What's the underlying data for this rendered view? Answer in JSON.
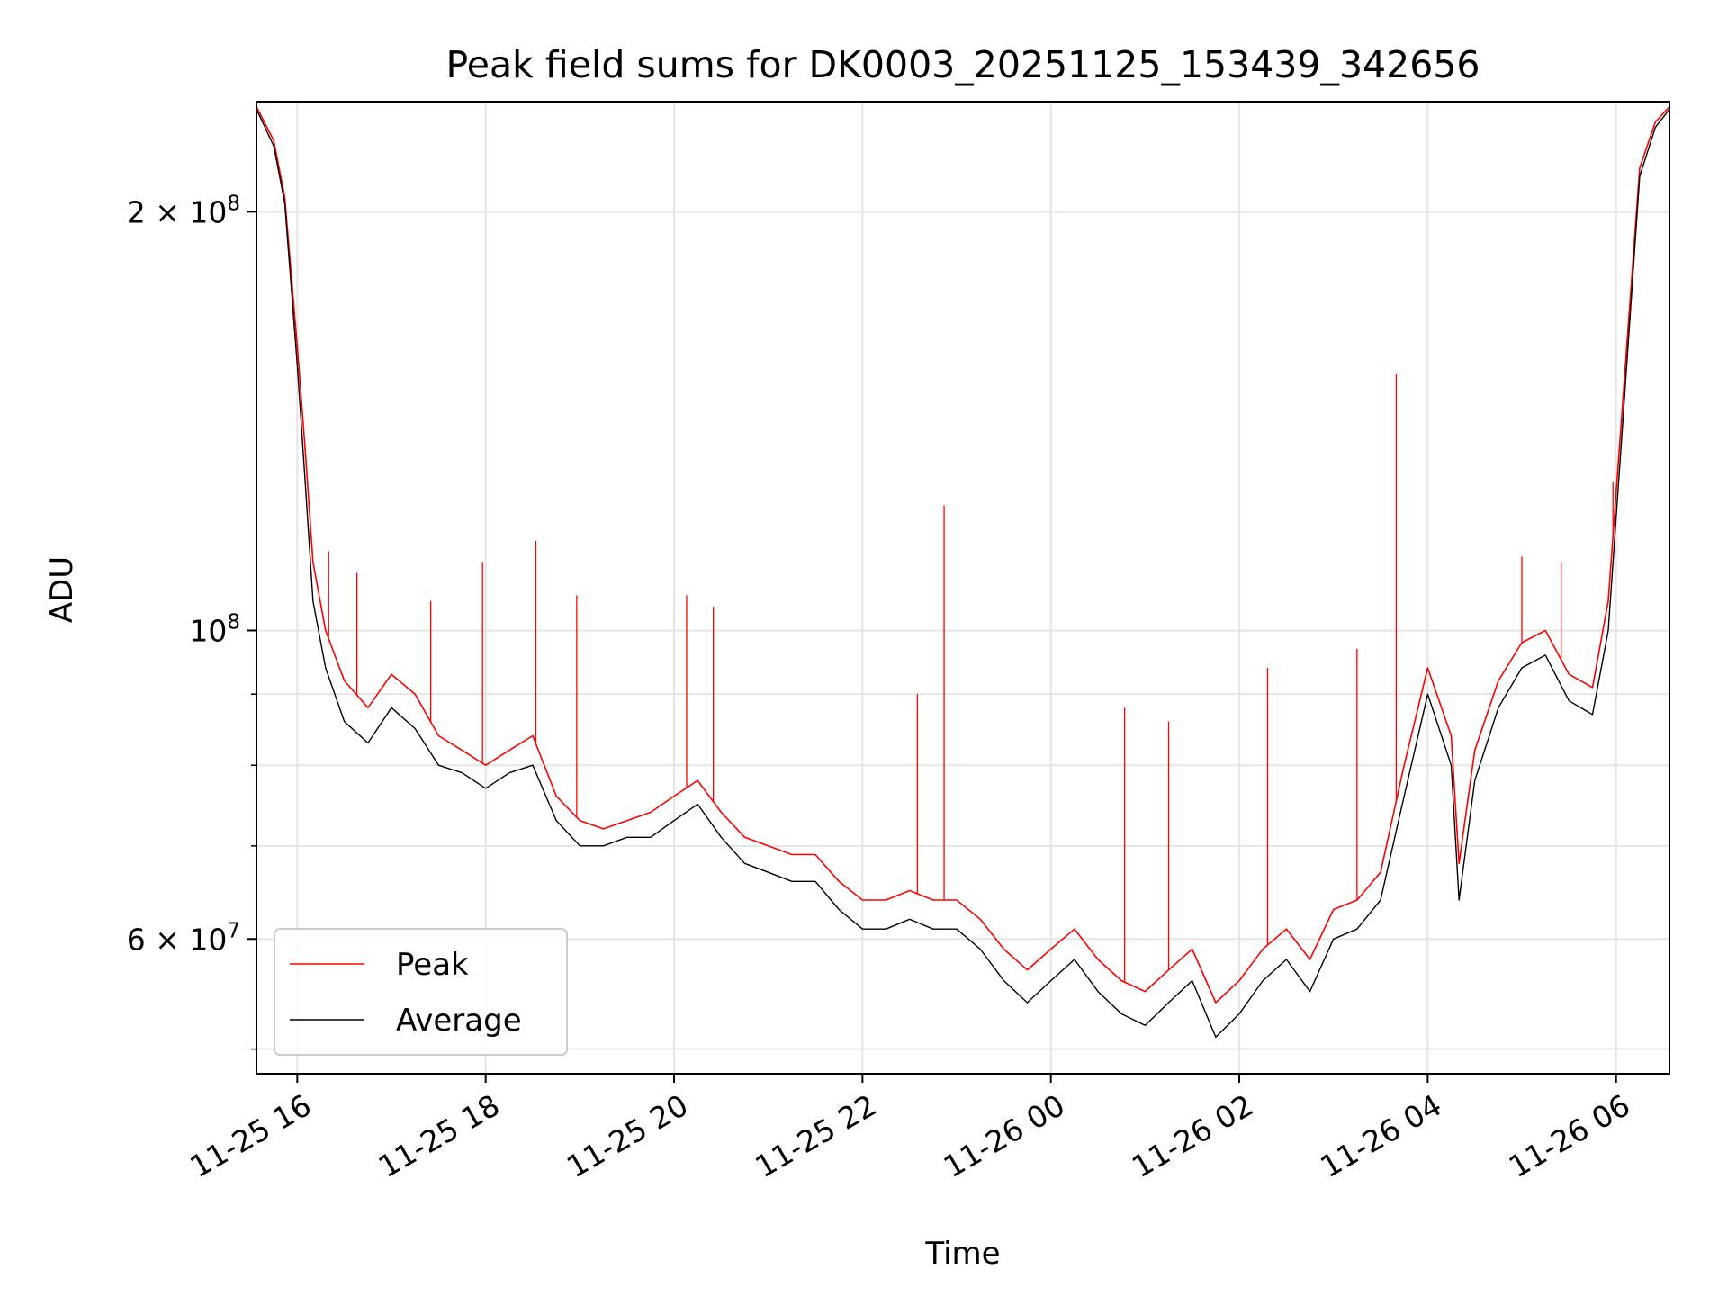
{
  "chart_data": {
    "type": "line",
    "title": "Peak field sums for DK0003_20251125_153439_342656",
    "xlabel": "Time",
    "ylabel": "ADU",
    "yscale": "log",
    "xlim": [
      "2025-11-25 15:34",
      "2025-11-26 06:34"
    ],
    "ylim": [
      48000000,
      240000000
    ],
    "grid": true,
    "legend_position": "lower-left",
    "x_ticks": [
      {
        "value": "2025-11-25 16:00",
        "label": "11-25 16"
      },
      {
        "value": "2025-11-25 18:00",
        "label": "11-25 18"
      },
      {
        "value": "2025-11-25 20:00",
        "label": "11-25 20"
      },
      {
        "value": "2025-11-25 22:00",
        "label": "11-25 22"
      },
      {
        "value": "2025-11-26 00:00",
        "label": "11-26 00"
      },
      {
        "value": "2025-11-26 02:00",
        "label": "11-26 02"
      },
      {
        "value": "2025-11-26 04:00",
        "label": "11-26 04"
      },
      {
        "value": "2025-11-26 06:00",
        "label": "11-26 06"
      }
    ],
    "y_ticks_major": [
      {
        "value": 200000000,
        "label": "2 × 10^8",
        "mantissa": "2 × 10",
        "exp": "8"
      },
      {
        "value": 100000000,
        "label": "10^8",
        "mantissa": "10",
        "exp": "8"
      },
      {
        "value": 60000000,
        "label": "6 × 10^7",
        "mantissa": "6 × 10",
        "exp": "7"
      }
    ],
    "y_ticks_minor": [
      50000000,
      70000000,
      80000000,
      90000000
    ],
    "series": [
      {
        "name": "Peak",
        "color": "#ff0000",
        "points": [
          [
            "2025-11-25 15:34",
            238000000
          ],
          [
            "2025-11-25 15:45",
            225000000
          ],
          [
            "2025-11-25 15:52",
            205000000
          ],
          [
            "2025-11-25 16:00",
            160000000
          ],
          [
            "2025-11-25 16:05",
            135000000
          ],
          [
            "2025-11-25 16:10",
            112000000
          ],
          [
            "2025-11-25 16:18",
            100000000
          ],
          [
            "2025-11-25 16:30",
            92000000
          ],
          [
            "2025-11-25 16:45",
            88000000
          ],
          [
            "2025-11-25 17:00",
            93000000
          ],
          [
            "2025-11-25 17:15",
            90000000
          ],
          [
            "2025-11-25 17:30",
            84000000
          ],
          [
            "2025-11-25 17:45",
            82000000
          ],
          [
            "2025-11-25 18:00",
            80000000
          ],
          [
            "2025-11-25 18:15",
            82000000
          ],
          [
            "2025-11-25 18:30",
            84000000
          ],
          [
            "2025-11-25 18:45",
            76000000
          ],
          [
            "2025-11-25 19:00",
            73000000
          ],
          [
            "2025-11-25 19:15",
            72000000
          ],
          [
            "2025-11-25 19:30",
            73000000
          ],
          [
            "2025-11-25 19:45",
            74000000
          ],
          [
            "2025-11-25 20:00",
            76000000
          ],
          [
            "2025-11-25 20:15",
            78000000
          ],
          [
            "2025-11-25 20:30",
            74000000
          ],
          [
            "2025-11-25 20:45",
            71000000
          ],
          [
            "2025-11-25 21:00",
            70000000
          ],
          [
            "2025-11-25 21:15",
            69000000
          ],
          [
            "2025-11-25 21:30",
            69000000
          ],
          [
            "2025-11-25 21:45",
            66000000
          ],
          [
            "2025-11-25 22:00",
            64000000
          ],
          [
            "2025-11-25 22:15",
            64000000
          ],
          [
            "2025-11-25 22:30",
            65000000
          ],
          [
            "2025-11-25 22:45",
            64000000
          ],
          [
            "2025-11-25 23:00",
            64000000
          ],
          [
            "2025-11-25 23:15",
            62000000
          ],
          [
            "2025-11-25 23:30",
            59000000
          ],
          [
            "2025-11-25 23:45",
            57000000
          ],
          [
            "2025-11-26 00:00",
            59000000
          ],
          [
            "2025-11-26 00:15",
            61000000
          ],
          [
            "2025-11-26 00:30",
            58000000
          ],
          [
            "2025-11-26 00:45",
            56000000
          ],
          [
            "2025-11-26 01:00",
            55000000
          ],
          [
            "2025-11-26 01:15",
            57000000
          ],
          [
            "2025-11-26 01:30",
            59000000
          ],
          [
            "2025-11-26 01:45",
            54000000
          ],
          [
            "2025-11-26 02:00",
            56000000
          ],
          [
            "2025-11-26 02:15",
            59000000
          ],
          [
            "2025-11-26 02:30",
            61000000
          ],
          [
            "2025-11-26 02:45",
            58000000
          ],
          [
            "2025-11-26 03:00",
            63000000
          ],
          [
            "2025-11-26 03:15",
            64000000
          ],
          [
            "2025-11-26 03:30",
            67000000
          ],
          [
            "2025-11-26 03:45",
            80000000
          ],
          [
            "2025-11-26 04:00",
            94000000
          ],
          [
            "2025-11-26 04:15",
            84000000
          ],
          [
            "2025-11-26 04:20",
            68000000
          ],
          [
            "2025-11-26 04:30",
            82000000
          ],
          [
            "2025-11-26 04:45",
            92000000
          ],
          [
            "2025-11-26 05:00",
            98000000
          ],
          [
            "2025-11-26 05:15",
            100000000
          ],
          [
            "2025-11-26 05:30",
            93000000
          ],
          [
            "2025-11-26 05:45",
            91000000
          ],
          [
            "2025-11-26 05:55",
            105000000
          ],
          [
            "2025-11-26 06:05",
            150000000
          ],
          [
            "2025-11-26 06:15",
            215000000
          ],
          [
            "2025-11-26 06:25",
            232000000
          ],
          [
            "2025-11-26 06:34",
            238000000
          ]
        ],
        "spikes": [
          [
            "2025-11-25 16:20",
            114000000
          ],
          [
            "2025-11-25 16:38",
            110000000
          ],
          [
            "2025-11-25 17:25",
            105000000
          ],
          [
            "2025-11-25 17:58",
            112000000
          ],
          [
            "2025-11-25 18:32",
            116000000
          ],
          [
            "2025-11-25 18:58",
            106000000
          ],
          [
            "2025-11-25 20:08",
            106000000
          ],
          [
            "2025-11-25 20:25",
            104000000
          ],
          [
            "2025-11-25 22:35",
            90000000
          ],
          [
            "2025-11-25 22:52",
            123000000
          ],
          [
            "2025-11-26 00:47",
            88000000
          ],
          [
            "2025-11-26 01:15",
            86000000
          ],
          [
            "2025-11-26 02:18",
            94000000
          ],
          [
            "2025-11-26 03:15",
            97000000
          ],
          [
            "2025-11-26 03:40",
            153000000
          ],
          [
            "2025-11-26 05:00",
            113000000
          ],
          [
            "2025-11-26 05:25",
            112000000
          ],
          [
            "2025-11-26 05:58",
            128000000
          ]
        ]
      },
      {
        "name": "Average",
        "color": "#000000",
        "points": [
          [
            "2025-11-25 15:34",
            237000000
          ],
          [
            "2025-11-25 15:45",
            223000000
          ],
          [
            "2025-11-25 15:52",
            203000000
          ],
          [
            "2025-11-25 16:00",
            155000000
          ],
          [
            "2025-11-25 16:05",
            128000000
          ],
          [
            "2025-11-25 16:10",
            105000000
          ],
          [
            "2025-11-25 16:18",
            94000000
          ],
          [
            "2025-11-25 16:30",
            86000000
          ],
          [
            "2025-11-25 16:45",
            83000000
          ],
          [
            "2025-11-25 17:00",
            88000000
          ],
          [
            "2025-11-25 17:15",
            85000000
          ],
          [
            "2025-11-25 17:30",
            80000000
          ],
          [
            "2025-11-25 17:45",
            79000000
          ],
          [
            "2025-11-25 18:00",
            77000000
          ],
          [
            "2025-11-25 18:15",
            79000000
          ],
          [
            "2025-11-25 18:30",
            80000000
          ],
          [
            "2025-11-25 18:45",
            73000000
          ],
          [
            "2025-11-25 19:00",
            70000000
          ],
          [
            "2025-11-25 19:15",
            70000000
          ],
          [
            "2025-11-25 19:30",
            71000000
          ],
          [
            "2025-11-25 19:45",
            71000000
          ],
          [
            "2025-11-25 20:00",
            73000000
          ],
          [
            "2025-11-25 20:15",
            75000000
          ],
          [
            "2025-11-25 20:30",
            71000000
          ],
          [
            "2025-11-25 20:45",
            68000000
          ],
          [
            "2025-11-25 21:00",
            67000000
          ],
          [
            "2025-11-25 21:15",
            66000000
          ],
          [
            "2025-11-25 21:30",
            66000000
          ],
          [
            "2025-11-25 21:45",
            63000000
          ],
          [
            "2025-11-25 22:00",
            61000000
          ],
          [
            "2025-11-25 22:15",
            61000000
          ],
          [
            "2025-11-25 22:30",
            62000000
          ],
          [
            "2025-11-25 22:45",
            61000000
          ],
          [
            "2025-11-25 23:00",
            61000000
          ],
          [
            "2025-11-25 23:15",
            59000000
          ],
          [
            "2025-11-25 23:30",
            56000000
          ],
          [
            "2025-11-25 23:45",
            54000000
          ],
          [
            "2025-11-26 00:00",
            56000000
          ],
          [
            "2025-11-26 00:15",
            58000000
          ],
          [
            "2025-11-26 00:30",
            55000000
          ],
          [
            "2025-11-26 00:45",
            53000000
          ],
          [
            "2025-11-26 01:00",
            52000000
          ],
          [
            "2025-11-26 01:15",
            54000000
          ],
          [
            "2025-11-26 01:30",
            56000000
          ],
          [
            "2025-11-26 01:45",
            51000000
          ],
          [
            "2025-11-26 02:00",
            53000000
          ],
          [
            "2025-11-26 02:15",
            56000000
          ],
          [
            "2025-11-26 02:30",
            58000000
          ],
          [
            "2025-11-26 02:45",
            55000000
          ],
          [
            "2025-11-26 03:00",
            60000000
          ],
          [
            "2025-11-26 03:15",
            61000000
          ],
          [
            "2025-11-26 03:30",
            64000000
          ],
          [
            "2025-11-26 03:45",
            76000000
          ],
          [
            "2025-11-26 04:00",
            90000000
          ],
          [
            "2025-11-26 04:15",
            80000000
          ],
          [
            "2025-11-26 04:20",
            64000000
          ],
          [
            "2025-11-26 04:30",
            78000000
          ],
          [
            "2025-11-26 04:45",
            88000000
          ],
          [
            "2025-11-26 05:00",
            94000000
          ],
          [
            "2025-11-26 05:15",
            96000000
          ],
          [
            "2025-11-26 05:30",
            89000000
          ],
          [
            "2025-11-26 05:45",
            87000000
          ],
          [
            "2025-11-26 05:55",
            100000000
          ],
          [
            "2025-11-26 06:05",
            145000000
          ],
          [
            "2025-11-26 06:15",
            212000000
          ],
          [
            "2025-11-26 06:25",
            230000000
          ],
          [
            "2025-11-26 06:34",
            237000000
          ]
        ]
      }
    ]
  }
}
